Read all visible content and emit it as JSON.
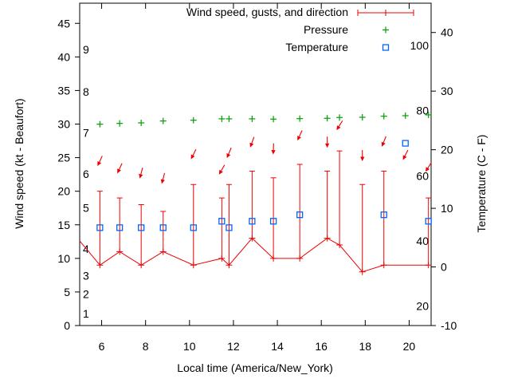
{
  "chart_data": {
    "type": "line",
    "description": "Meteogram: wind speed/gusts/direction (red), pressure (green crosses), temperature (blue squares)",
    "x_axis": {
      "label": "Local time (America/New_York)",
      "range": [
        5,
        21
      ],
      "ticks": [
        6,
        8,
        10,
        12,
        14,
        16,
        18,
        20
      ]
    },
    "y_left": {
      "label": "Wind speed (kt - Beaufort)",
      "range": [
        0,
        48
      ],
      "ticks": [
        0,
        5,
        10,
        15,
        20,
        25,
        30,
        35,
        40,
        45
      ],
      "beaufort_inside_labels": [
        {
          "label": "1",
          "kt": 1.8
        },
        {
          "label": "2",
          "kt": 4.7
        },
        {
          "label": "3",
          "kt": 7.4
        },
        {
          "label": "4",
          "kt": 11.4
        },
        {
          "label": "5",
          "kt": 17.5
        },
        {
          "label": "6",
          "kt": 22.6
        },
        {
          "label": "7",
          "kt": 28.7
        },
        {
          "label": "8",
          "kt": 34.8
        },
        {
          "label": "9",
          "kt": 41.1
        }
      ]
    },
    "y_right": {
      "label": "Temperature (C - F)",
      "range": [
        -10,
        45
      ],
      "ticks": [
        -10,
        0,
        10,
        20,
        30,
        40
      ],
      "fahrenheit_inside_labels": [
        20,
        40,
        60,
        80,
        100
      ]
    },
    "legend": {
      "wind_label": "Wind speed, gusts, and direction",
      "pressure_label": "Pressure",
      "temperature_label": "Temperature"
    },
    "colors": {
      "wind": "#ee0000",
      "pressure": "#00a000",
      "temperature": "#0066ff",
      "axis": "#000000",
      "background": "#ffffff"
    },
    "series": {
      "wind": {
        "name": "Wind speed, gusts, and direction",
        "lead_in_point": {
          "t": 5.0,
          "kt": 12.6
        },
        "points": [
          {
            "t": 5.92,
            "kt": 9,
            "gust": 20,
            "arrow_kt": 24.5,
            "dir_deg": 205
          },
          {
            "t": 6.82,
            "kt": 11,
            "gust": 19,
            "arrow_kt": 23.4,
            "dir_deg": 205
          },
          {
            "t": 7.8,
            "kt": 9,
            "gust": 18,
            "arrow_kt": 22.7,
            "dir_deg": 195
          },
          {
            "t": 8.8,
            "kt": 11,
            "gust": 17,
            "arrow_kt": 21.9,
            "dir_deg": 195
          },
          {
            "t": 10.18,
            "kt": 9,
            "gust": 21,
            "arrow_kt": 25.5,
            "dir_deg": 207
          },
          {
            "t": 11.47,
            "kt": 10,
            "gust": 19,
            "arrow_kt": 23.2,
            "dir_deg": 210
          },
          {
            "t": 11.8,
            "kt": 9,
            "gust": 21,
            "arrow_kt": 25.7,
            "dir_deg": 203
          },
          {
            "t": 12.85,
            "kt": 13,
            "gust": 23,
            "arrow_kt": 27.3,
            "dir_deg": 200
          },
          {
            "t": 13.82,
            "kt": 10,
            "gust": 22,
            "arrow_kt": 26.3,
            "dir_deg": 182
          },
          {
            "t": 15.02,
            "kt": 10,
            "gust": 24,
            "arrow_kt": 28.3,
            "dir_deg": 205
          },
          {
            "t": 16.27,
            "kt": 13,
            "gust": 23,
            "arrow_kt": 27.3,
            "dir_deg": 180
          },
          {
            "t": 16.83,
            "kt": 12,
            "gust": 26,
            "arrow_kt": 29.8,
            "dir_deg": 212
          },
          {
            "t": 17.87,
            "kt": 8,
            "gust": 21,
            "arrow_kt": 25.3,
            "dir_deg": 180
          },
          {
            "t": 18.85,
            "kt": 9,
            "gust": 23,
            "arrow_kt": 27.4,
            "dir_deg": 202
          },
          {
            "t": 19.83,
            "kt": null,
            "gust": null,
            "arrow_kt": 25.4,
            "dir_deg": 207
          },
          {
            "t": 20.88,
            "kt": 9,
            "gust": 19,
            "arrow_kt": 23.6,
            "dir_deg": 212
          }
        ]
      },
      "pressure": {
        "name": "Pressure",
        "points": [
          {
            "t": 5.92,
            "y_left_axis": 29.98
          },
          {
            "t": 6.82,
            "y_left_axis": 30.1
          },
          {
            "t": 7.8,
            "y_left_axis": 30.18
          },
          {
            "t": 8.8,
            "y_left_axis": 30.46
          },
          {
            "t": 10.18,
            "y_left_axis": 30.57
          },
          {
            "t": 11.47,
            "y_left_axis": 30.78
          },
          {
            "t": 11.8,
            "y_left_axis": 30.78
          },
          {
            "t": 12.85,
            "y_left_axis": 30.78
          },
          {
            "t": 13.82,
            "y_left_axis": 30.74
          },
          {
            "t": 15.02,
            "y_left_axis": 30.81
          },
          {
            "t": 16.27,
            "y_left_axis": 30.86
          },
          {
            "t": 16.83,
            "y_left_axis": 30.98
          },
          {
            "t": 17.87,
            "y_left_axis": 31.01
          },
          {
            "t": 18.85,
            "y_left_axis": 31.17
          },
          {
            "t": 19.83,
            "y_left_axis": 31.25
          },
          {
            "t": 20.88,
            "y_left_axis": 31.37
          }
        ]
      },
      "temperature": {
        "name": "Temperature",
        "points": [
          {
            "t": 5.92,
            "c": 6.7
          },
          {
            "t": 6.82,
            "c": 6.7
          },
          {
            "t": 7.8,
            "c": 6.7
          },
          {
            "t": 8.8,
            "c": 6.7
          },
          {
            "t": 10.18,
            "c": 6.7
          },
          {
            "t": 11.47,
            "c": 7.8
          },
          {
            "t": 11.8,
            "c": 6.7
          },
          {
            "t": 12.85,
            "c": 7.8
          },
          {
            "t": 13.82,
            "c": 7.8
          },
          {
            "t": 15.02,
            "c": 8.9
          },
          {
            "t": 18.85,
            "c": 8.9
          },
          {
            "t": 19.83,
            "c": 21.1
          },
          {
            "t": 20.88,
            "c": 7.8
          }
        ]
      }
    }
  }
}
